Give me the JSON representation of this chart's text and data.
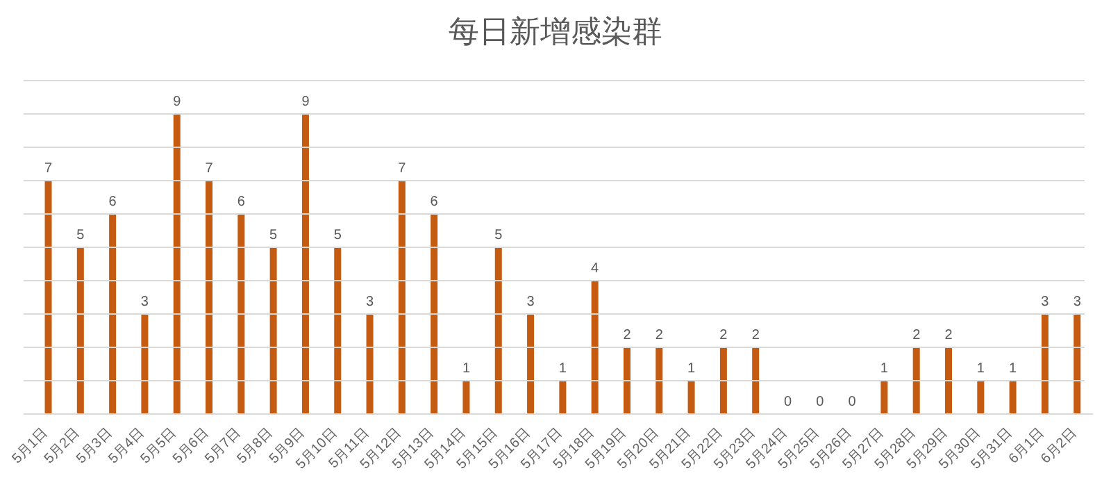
{
  "chart_data": {
    "type": "bar",
    "title": "每日新增感染群",
    "categories": [
      "5月1日",
      "5月2日",
      "5月3日",
      "5月4日",
      "5月5日",
      "5月6日",
      "5月7日",
      "5月8日",
      "5月9日",
      "5月10日",
      "5月11日",
      "5月12日",
      "5月13日",
      "5月14日",
      "5月15日",
      "5月16日",
      "5月17日",
      "5月18日",
      "5月19日",
      "5月20日",
      "5月21日",
      "5月22日",
      "5月23日",
      "5月24日",
      "5月25日",
      "5月26日",
      "5月27日",
      "5月28日",
      "5月29日",
      "5月30日",
      "5月31日",
      "6月1日",
      "6月2日"
    ],
    "values": [
      7,
      5,
      6,
      3,
      9,
      7,
      6,
      5,
      9,
      5,
      3,
      7,
      6,
      1,
      5,
      3,
      1,
      4,
      2,
      2,
      1,
      2,
      2,
      0,
      0,
      0,
      1,
      2,
      2,
      1,
      1,
      3,
      3
    ],
    "color": "#c55a11",
    "ylim": [
      0,
      10
    ],
    "yticks": [
      {
        "value": 0,
        "label": null
      },
      {
        "value": 1,
        "label": null
      },
      {
        "value": 2,
        "label": null
      },
      {
        "value": 3,
        "label": null
      },
      {
        "value": 4,
        "label": null
      },
      {
        "value": 5,
        "label": null
      },
      {
        "value": 6,
        "label": null
      },
      {
        "value": 7,
        "label": null
      },
      {
        "value": 8,
        "label": null
      },
      {
        "value": 9,
        "label": null
      },
      {
        "value": 10,
        "label": null
      }
    ],
    "grid": "y",
    "data_labels": true,
    "tick_labels": "x"
  }
}
